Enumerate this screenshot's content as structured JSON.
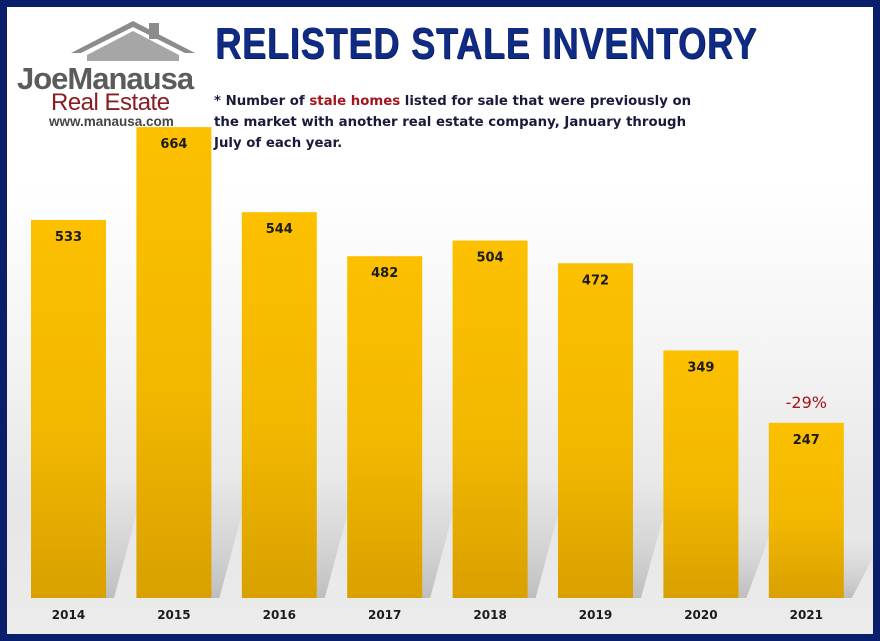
{
  "title": "RELISTED STALE INVENTORY",
  "subtitle": {
    "prefix": "* Number of ",
    "highlight": "stale homes",
    "suffix": " listed for sale that were previously on the market with another real estate company, January through July of each year."
  },
  "logo": {
    "name": "JoeManausa",
    "tagline": "Real Estate",
    "url": "www.manausa.com",
    "icon": "house-roof-icon"
  },
  "colors": {
    "bar": "#f8bf00",
    "title": "#0f2b84",
    "frame": "#0a1f6b",
    "highlight": "#a3141c"
  },
  "chart_data": {
    "type": "bar",
    "categories": [
      "2014",
      "2015",
      "2016",
      "2017",
      "2018",
      "2019",
      "2020",
      "2021"
    ],
    "values": [
      533,
      664,
      544,
      482,
      504,
      472,
      349,
      247
    ],
    "data_labels": [
      "533",
      "664",
      "544",
      "482",
      "504",
      "472",
      "349",
      "247"
    ],
    "title": "RELISTED STALE INVENTORY",
    "xlabel": "",
    "ylabel": "",
    "ylim": [
      0,
      700
    ],
    "grid": false,
    "legend": "none",
    "annotations": [
      {
        "category": "2021",
        "text": "-29%"
      }
    ]
  }
}
